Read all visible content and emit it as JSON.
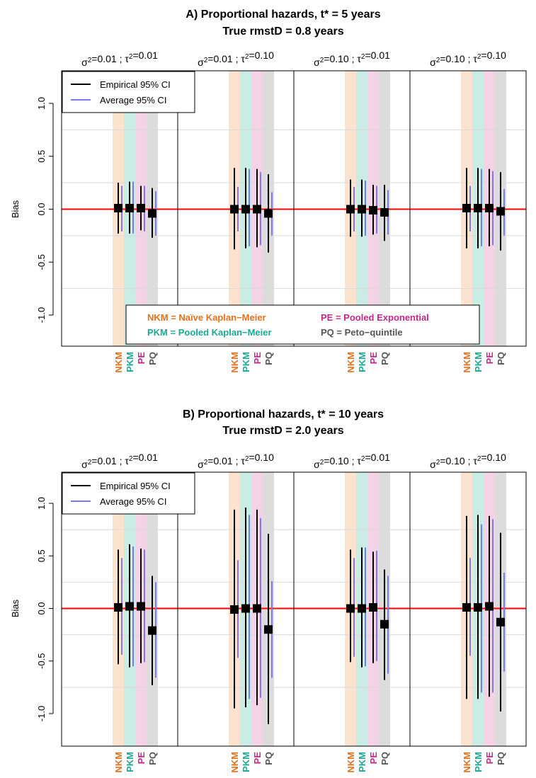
{
  "chart_data": [
    {
      "type": "scatter",
      "title_line1": "A) Proportional hazards, t* = 5 years",
      "title_line2": "True rmstD = 0.8 years",
      "ylabel": "Bias",
      "ylim": [
        -1.3,
        1.3
      ],
      "yticks": [
        "-1.0",
        "-0.5",
        "0.0",
        "0.5",
        "1.0"
      ],
      "ytick_values": [
        -1.0,
        -0.5,
        0.0,
        0.5,
        1.0
      ],
      "panels": [
        "σ²=0.01 ; τ²=0.01",
        "σ²=0.01 ; τ²=0.10",
        "σ²=0.10 ; τ²=0.01",
        "σ²=0.10 ; τ²=0.10"
      ],
      "methods": [
        "NKM",
        "PKM",
        "PE",
        "PQ"
      ],
      "legend": [
        "Empirical 95% CI",
        "Average 95% CI"
      ],
      "method_legend": [
        "NKM = Naïve Kaplan−Meier",
        "PE = Pooled Exponential",
        "PKM = Pooled Kaplan−Meier",
        "PQ = Peto−quintile"
      ],
      "reference_line": 0,
      "series": [
        {
          "name": "Bias",
          "values": [
            [
              0.01,
              0.01,
              0.01,
              -0.04
            ],
            [
              0.0,
              0.0,
              0.0,
              -0.04
            ],
            [
              0.0,
              0.0,
              -0.01,
              -0.03
            ],
            [
              0.01,
              0.01,
              0.01,
              -0.02
            ]
          ]
        },
        {
          "name": "Empirical 95% CI",
          "lower": [
            [
              -0.23,
              -0.23,
              -0.2,
              -0.27
            ],
            [
              -0.38,
              -0.37,
              -0.36,
              -0.41
            ],
            [
              -0.26,
              -0.26,
              -0.24,
              -0.3
            ],
            [
              -0.37,
              -0.37,
              -0.35,
              -0.39
            ]
          ],
          "upper": [
            [
              0.25,
              0.26,
              0.22,
              0.2
            ],
            [
              0.39,
              0.39,
              0.38,
              0.33
            ],
            [
              0.28,
              0.28,
              0.23,
              0.23
            ],
            [
              0.39,
              0.39,
              0.38,
              0.35
            ]
          ]
        },
        {
          "name": "Average 95% CI",
          "lower": [
            [
              -0.21,
              -0.23,
              -0.21,
              -0.25
            ],
            [
              -0.21,
              -0.35,
              -0.34,
              -0.25
            ],
            [
              -0.21,
              -0.25,
              -0.23,
              -0.24
            ],
            [
              -0.21,
              -0.35,
              -0.34,
              -0.25
            ]
          ],
          "upper": [
            [
              0.22,
              0.26,
              0.22,
              0.17
            ],
            [
              0.21,
              0.38,
              0.35,
              0.16
            ],
            [
              0.21,
              0.27,
              0.22,
              0.18
            ],
            [
              0.22,
              0.38,
              0.36,
              0.19
            ]
          ]
        }
      ]
    },
    {
      "type": "scatter",
      "title_line1": "B) Proportional hazards, t* = 10 years",
      "title_line2": "True rmstD = 2.0 years",
      "ylabel": "Bias",
      "ylim": [
        -1.3,
        1.3
      ],
      "yticks": [
        "-1.0",
        "-0.5",
        "0.0",
        "0.5",
        "1.0"
      ],
      "ytick_values": [
        -1.0,
        -0.5,
        0.0,
        0.5,
        1.0
      ],
      "panels": [
        "σ²=0.01 ; τ²=0.01",
        "σ²=0.01 ; τ²=0.10",
        "σ²=0.10 ; τ²=0.01",
        "σ²=0.10 ; τ²=0.10"
      ],
      "methods": [
        "NKM",
        "PKM",
        "PE",
        "PQ"
      ],
      "legend": [
        "Empirical 95% CI",
        "Average 95% CI"
      ],
      "reference_line": 0,
      "series": [
        {
          "name": "Bias",
          "values": [
            [
              0.01,
              0.02,
              0.02,
              -0.21
            ],
            [
              -0.01,
              0.0,
              0.0,
              -0.2
            ],
            [
              0.0,
              0.0,
              0.01,
              -0.15
            ],
            [
              0.01,
              0.01,
              0.02,
              -0.13
            ]
          ]
        },
        {
          "name": "Empirical 95% CI",
          "lower": [
            [
              -0.53,
              -0.56,
              -0.52,
              -0.73
            ],
            [
              -0.95,
              -0.94,
              -0.92,
              -1.1
            ],
            [
              -0.51,
              -0.56,
              -0.52,
              -0.68
            ],
            [
              -0.86,
              -0.86,
              -0.84,
              -0.98
            ]
          ],
          "upper": [
            [
              0.56,
              0.61,
              0.57,
              0.31
            ],
            [
              0.94,
              0.96,
              0.94,
              0.71
            ],
            [
              0.56,
              0.58,
              0.54,
              0.37
            ],
            [
              0.88,
              0.89,
              0.88,
              0.72
            ]
          ]
        },
        {
          "name": "Average 95% CI",
          "lower": [
            [
              -0.44,
              -0.55,
              -0.51,
              -0.66
            ],
            [
              -0.47,
              -0.86,
              -0.85,
              -0.66
            ],
            [
              -0.46,
              -0.55,
              -0.5,
              -0.62
            ],
            [
              -0.45,
              -0.8,
              -0.8,
              -0.6
            ]
          ],
          "upper": [
            [
              0.48,
              0.59,
              0.56,
              0.25
            ],
            [
              0.46,
              0.89,
              0.86,
              0.26
            ],
            [
              0.48,
              0.58,
              0.55,
              0.31
            ],
            [
              0.48,
              0.8,
              0.85,
              0.34
            ]
          ]
        }
      ]
    }
  ],
  "colors": {
    "nkm_band": "#fce3d0",
    "pkm_band": "#c9ece4",
    "pe_band": "#f3d3e5",
    "pq_band": "#dcdcdc",
    "nkm_label": "#e6711a",
    "pkm_label": "#1aaa94",
    "pe_label": "#c7278a",
    "pq_label": "#555555",
    "empirical": "#000000",
    "average": "#7b7bf0",
    "zero_line": "#ff0000",
    "grid": "#d9d9d9"
  }
}
